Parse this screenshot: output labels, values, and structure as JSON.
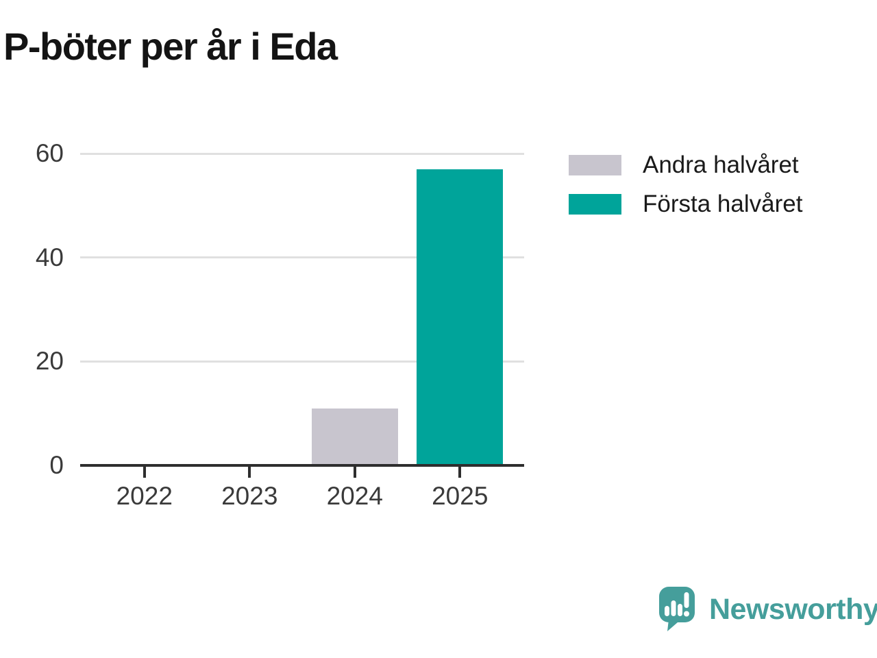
{
  "title": "P-böter per år i Eda",
  "colors": {
    "teal": "#00a49a",
    "gray": "#c8c5ce",
    "gridline": "#e0e0e0",
    "axis": "#2e2e2e",
    "tick_label": "#3a3a3a",
    "title_text": "#141414",
    "legend_text": "#1a1a1a",
    "logo_teal": "#459e9b"
  },
  "legend": {
    "items": [
      {
        "label": "Andra halvåret",
        "color_key": "gray"
      },
      {
        "label": "Första halvåret",
        "color_key": "teal"
      }
    ]
  },
  "chart_data": {
    "type": "bar",
    "stacked": true,
    "title": "P-böter per år i Eda",
    "categories": [
      "2022",
      "2023",
      "2024",
      "2025"
    ],
    "series": [
      {
        "name": "Andra halvåret",
        "color_key": "gray",
        "values": [
          0,
          0,
          11,
          0
        ]
      },
      {
        "name": "Första halvåret",
        "color_key": "teal",
        "values": [
          0,
          0,
          0,
          57
        ]
      }
    ],
    "xlabel": "",
    "ylabel": "",
    "ylim": [
      0,
      60
    ],
    "yticks": [
      0,
      20,
      40,
      60
    ],
    "grid": "horizontal",
    "legend_position": "right"
  },
  "logo": {
    "brand": "Newsworthy"
  }
}
